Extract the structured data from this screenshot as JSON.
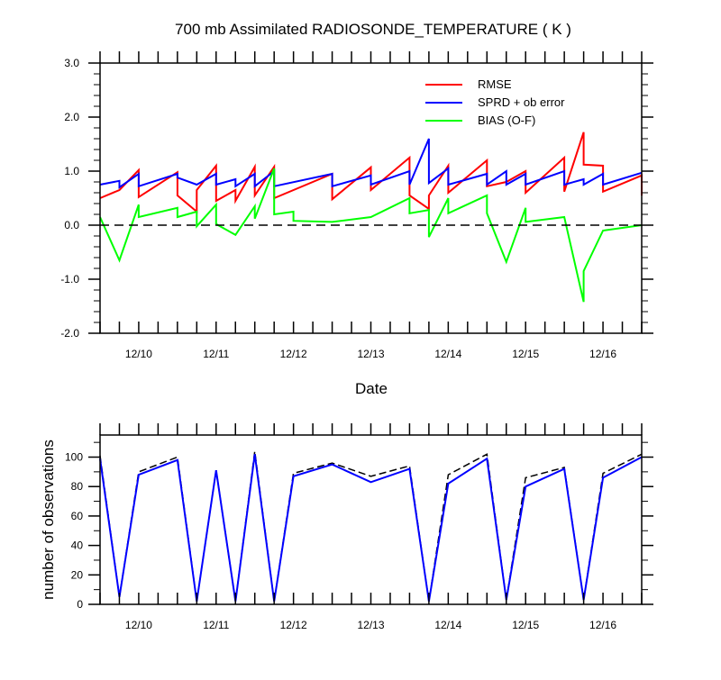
{
  "chart_data": [
    {
      "type": "line",
      "title": "700 mb Assimilated RADIOSONDE_TEMPERATURE ( K )",
      "xlabel": "Date",
      "ylabel": "",
      "xlim": [
        "2011-12-09 12:00",
        "2011-12-16 12:00"
      ],
      "ylim": [
        -2.0,
        3.0
      ],
      "yticks": [
        "-2.0",
        "-1.0",
        "0.0",
        "1.0",
        "2.0",
        "3.0"
      ],
      "xtick_labels": [
        "12/10",
        "12/11",
        "12/12",
        "12/13",
        "12/14",
        "12/15",
        "12/16"
      ],
      "zero_line": true,
      "legend_position": "top-right",
      "series": [
        {
          "name": "RMSE",
          "color": "#ff0000",
          "points": [
            [
              "2011-12-09 12:00",
              0.5
            ],
            [
              "2011-12-09 18:00",
              0.65
            ],
            [
              "2011-12-10 00:00",
              1.02
            ],
            [
              "2011-12-10 00:00",
              0.52
            ],
            [
              "2011-12-10 12:00",
              0.98
            ],
            [
              "2011-12-10 12:00",
              0.55
            ],
            [
              "2011-12-10 18:00",
              0.25
            ],
            [
              "2011-12-10 18:00",
              0.65
            ],
            [
              "2011-12-11 00:00",
              1.1
            ],
            [
              "2011-12-11 00:00",
              0.45
            ],
            [
              "2011-12-11 06:00",
              0.65
            ],
            [
              "2011-12-11 06:00",
              0.45
            ],
            [
              "2011-12-11 12:00",
              1.08
            ],
            [
              "2011-12-11 12:00",
              0.55
            ],
            [
              "2011-12-11 18:00",
              1.08
            ],
            [
              "2011-12-11 18:00",
              0.5
            ],
            [
              "2011-12-12 12:00",
              0.95
            ],
            [
              "2011-12-12 12:00",
              0.48
            ],
            [
              "2011-12-13 00:00",
              1.07
            ],
            [
              "2011-12-13 00:00",
              0.65
            ],
            [
              "2011-12-13 12:00",
              1.25
            ],
            [
              "2011-12-13 12:00",
              0.55
            ],
            [
              "2011-12-13 18:00",
              0.3
            ],
            [
              "2011-12-13 18:00",
              0.55
            ],
            [
              "2011-12-14 00:00",
              1.1
            ],
            [
              "2011-12-14 00:00",
              0.6
            ],
            [
              "2011-12-14 12:00",
              1.2
            ],
            [
              "2011-12-14 12:00",
              0.72
            ],
            [
              "2011-12-14 18:00",
              0.8
            ],
            [
              "2011-12-14 18:00",
              0.8
            ],
            [
              "2011-12-15 00:00",
              1.0
            ],
            [
              "2011-12-15 00:00",
              0.6
            ],
            [
              "2011-12-15 12:00",
              1.25
            ],
            [
              "2011-12-15 12:00",
              0.62
            ],
            [
              "2011-12-15 18:00",
              1.72
            ],
            [
              "2011-12-15 18:00",
              1.12
            ],
            [
              "2011-12-16 00:00",
              1.1
            ],
            [
              "2011-12-16 00:00",
              0.62
            ],
            [
              "2011-12-16 12:00",
              0.92
            ],
            [
              "2011-12-16 12:00",
              0.55
            ]
          ]
        },
        {
          "name": "SPRD + ob error",
          "color": "#0000ff",
          "points": [
            [
              "2011-12-09 12:00",
              0.75
            ],
            [
              "2011-12-09 18:00",
              0.82
            ],
            [
              "2011-12-09 18:00",
              0.7
            ],
            [
              "2011-12-10 00:00",
              0.95
            ],
            [
              "2011-12-10 00:00",
              0.72
            ],
            [
              "2011-12-10 12:00",
              0.95
            ],
            [
              "2011-12-10 12:00",
              0.88
            ],
            [
              "2011-12-10 18:00",
              0.75
            ],
            [
              "2011-12-10 18:00",
              0.75
            ],
            [
              "2011-12-11 00:00",
              0.95
            ],
            [
              "2011-12-11 00:00",
              0.75
            ],
            [
              "2011-12-11 06:00",
              0.85
            ],
            [
              "2011-12-11 06:00",
              0.72
            ],
            [
              "2011-12-11 12:00",
              0.95
            ],
            [
              "2011-12-11 12:00",
              0.72
            ],
            [
              "2011-12-11 18:00",
              1.0
            ],
            [
              "2011-12-11 18:00",
              0.72
            ],
            [
              "2011-12-12 12:00",
              0.95
            ],
            [
              "2011-12-12 12:00",
              0.72
            ],
            [
              "2011-12-13 00:00",
              0.92
            ],
            [
              "2011-12-13 00:00",
              0.75
            ],
            [
              "2011-12-13 12:00",
              1.0
            ],
            [
              "2011-12-13 12:00",
              0.75
            ],
            [
              "2011-12-13 18:00",
              1.6
            ],
            [
              "2011-12-13 18:00",
              0.78
            ],
            [
              "2011-12-14 00:00",
              1.05
            ],
            [
              "2011-12-14 00:00",
              0.75
            ],
            [
              "2011-12-14 12:00",
              0.95
            ],
            [
              "2011-12-14 12:00",
              0.75
            ],
            [
              "2011-12-14 18:00",
              1.0
            ],
            [
              "2011-12-14 18:00",
              0.75
            ],
            [
              "2011-12-15 00:00",
              0.95
            ],
            [
              "2011-12-15 00:00",
              0.75
            ],
            [
              "2011-12-15 12:00",
              1.0
            ],
            [
              "2011-12-15 12:00",
              0.75
            ],
            [
              "2011-12-15 18:00",
              0.85
            ],
            [
              "2011-12-15 18:00",
              0.75
            ],
            [
              "2011-12-16 00:00",
              0.95
            ],
            [
              "2011-12-16 00:00",
              0.75
            ],
            [
              "2011-12-16 12:00",
              0.97
            ]
          ]
        },
        {
          "name": "BIAS (O-F)",
          "color": "#00ff00",
          "points": [
            [
              "2011-12-09 12:00",
              0.15
            ],
            [
              "2011-12-09 18:00",
              -0.65
            ],
            [
              "2011-12-10 00:00",
              0.38
            ],
            [
              "2011-12-10 00:00",
              0.15
            ],
            [
              "2011-12-10 12:00",
              0.32
            ],
            [
              "2011-12-10 12:00",
              0.15
            ],
            [
              "2011-12-10 18:00",
              0.25
            ],
            [
              "2011-12-10 18:00",
              -0.02
            ],
            [
              "2011-12-11 00:00",
              0.38
            ],
            [
              "2011-12-11 00:00",
              0.02
            ],
            [
              "2011-12-11 06:00",
              -0.18
            ],
            [
              "2011-12-11 06:00",
              -0.18
            ],
            [
              "2011-12-11 12:00",
              0.35
            ],
            [
              "2011-12-11 12:00",
              0.12
            ],
            [
              "2011-12-11 18:00",
              1.05
            ],
            [
              "2011-12-11 18:00",
              0.2
            ],
            [
              "2011-12-12 00:00",
              0.25
            ],
            [
              "2011-12-12 00:00",
              0.08
            ],
            [
              "2011-12-12 12:00",
              0.06
            ],
            [
              "2011-12-13 00:00",
              0.15
            ],
            [
              "2011-12-13 12:00",
              0.5
            ],
            [
              "2011-12-13 12:00",
              0.22
            ],
            [
              "2011-12-13 18:00",
              0.28
            ],
            [
              "2011-12-13 18:00",
              -0.22
            ],
            [
              "2011-12-14 00:00",
              0.5
            ],
            [
              "2011-12-14 00:00",
              0.22
            ],
            [
              "2011-12-14 12:00",
              0.55
            ],
            [
              "2011-12-14 12:00",
              0.22
            ],
            [
              "2011-12-14 18:00",
              -0.68
            ],
            [
              "2011-12-15 00:00",
              0.32
            ],
            [
              "2011-12-15 00:00",
              0.06
            ],
            [
              "2011-12-15 12:00",
              0.15
            ],
            [
              "2011-12-15 18:00",
              -1.42
            ],
            [
              "2011-12-15 18:00",
              -0.85
            ],
            [
              "2011-12-16 00:00",
              -0.1
            ],
            [
              "2011-12-16 12:00",
              0.0
            ]
          ]
        }
      ]
    },
    {
      "type": "line",
      "title": "",
      "xlabel": "",
      "ylabel": "number of observations",
      "xlim": [
        "2011-12-09 12:00",
        "2011-12-16 12:00"
      ],
      "ylim": [
        0,
        115
      ],
      "yticks": [
        "0",
        "20",
        "40",
        "60",
        "80",
        "100"
      ],
      "xtick_labels": [
        "12/10",
        "12/11",
        "12/12",
        "12/13",
        "12/14",
        "12/15",
        "12/16"
      ],
      "series": [
        {
          "name": "",
          "color": "#000000",
          "dashed": true,
          "points": [
            [
              "2011-12-09 12:00",
              101
            ],
            [
              "2011-12-09 18:00",
              5
            ],
            [
              "2011-12-10 00:00",
              90
            ],
            [
              "2011-12-10 12:00",
              100
            ],
            [
              "2011-12-10 18:00",
              2
            ],
            [
              "2011-12-11 00:00",
              91
            ],
            [
              "2011-12-11 06:00",
              2
            ],
            [
              "2011-12-11 12:00",
              104
            ],
            [
              "2011-12-11 18:00",
              2
            ],
            [
              "2011-12-12 00:00",
              89
            ],
            [
              "2011-12-12 12:00",
              96
            ],
            [
              "2011-12-13 00:00",
              87
            ],
            [
              "2011-12-13 12:00",
              94
            ],
            [
              "2011-12-13 18:00",
              2
            ],
            [
              "2011-12-14 00:00",
              88
            ],
            [
              "2011-12-14 12:00",
              102
            ],
            [
              "2011-12-14 18:00",
              3
            ],
            [
              "2011-12-15 00:00",
              86
            ],
            [
              "2011-12-15 12:00",
              93
            ],
            [
              "2011-12-15 18:00",
              3
            ],
            [
              "2011-12-16 00:00",
              89
            ],
            [
              "2011-12-16 12:00",
              102
            ]
          ]
        },
        {
          "name": "",
          "color": "#0000ff",
          "dashed": false,
          "points": [
            [
              "2011-12-09 12:00",
              99
            ],
            [
              "2011-12-09 18:00",
              5
            ],
            [
              "2011-12-10 00:00",
              88
            ],
            [
              "2011-12-10 12:00",
              98
            ],
            [
              "2011-12-10 18:00",
              2
            ],
            [
              "2011-12-11 00:00",
              91
            ],
            [
              "2011-12-11 06:00",
              2
            ],
            [
              "2011-12-11 12:00",
              102
            ],
            [
              "2011-12-11 18:00",
              2
            ],
            [
              "2011-12-12 00:00",
              87
            ],
            [
              "2011-12-12 12:00",
              95
            ],
            [
              "2011-12-13 00:00",
              83
            ],
            [
              "2011-12-13 12:00",
              92
            ],
            [
              "2011-12-13 18:00",
              2
            ],
            [
              "2011-12-14 00:00",
              82
            ],
            [
              "2011-12-14 12:00",
              99
            ],
            [
              "2011-12-14 18:00",
              3
            ],
            [
              "2011-12-15 00:00",
              80
            ],
            [
              "2011-12-15 12:00",
              92
            ],
            [
              "2011-12-15 18:00",
              3
            ],
            [
              "2011-12-16 00:00",
              86
            ],
            [
              "2011-12-16 12:00",
              100
            ]
          ]
        }
      ]
    }
  ]
}
